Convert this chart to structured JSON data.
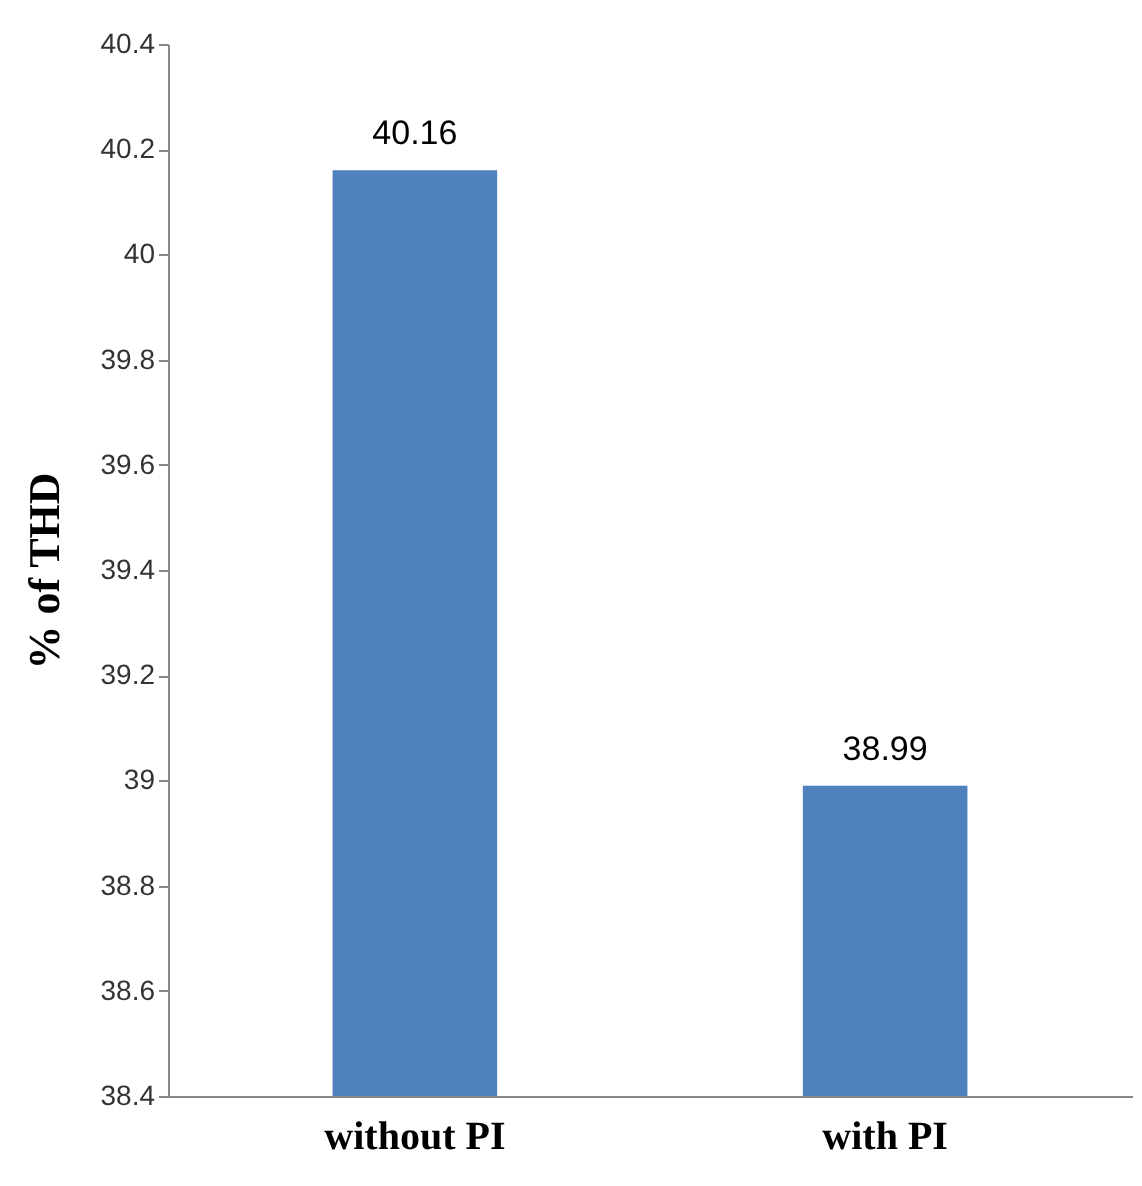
{
  "chart_data": {
    "type": "bar",
    "ylabel": "% of THD",
    "categories": [
      "without PI",
      "with PI"
    ],
    "values": [
      40.16,
      38.99
    ],
    "color": "#4f81bd",
    "ylim": [
      38.4,
      40.4
    ],
    "yticks": [
      38.4,
      38.6,
      38.8,
      39,
      39.2,
      39.4,
      39.6,
      39.8,
      40,
      40.2,
      40.4
    ],
    "data_labels": true,
    "grid": false
  }
}
